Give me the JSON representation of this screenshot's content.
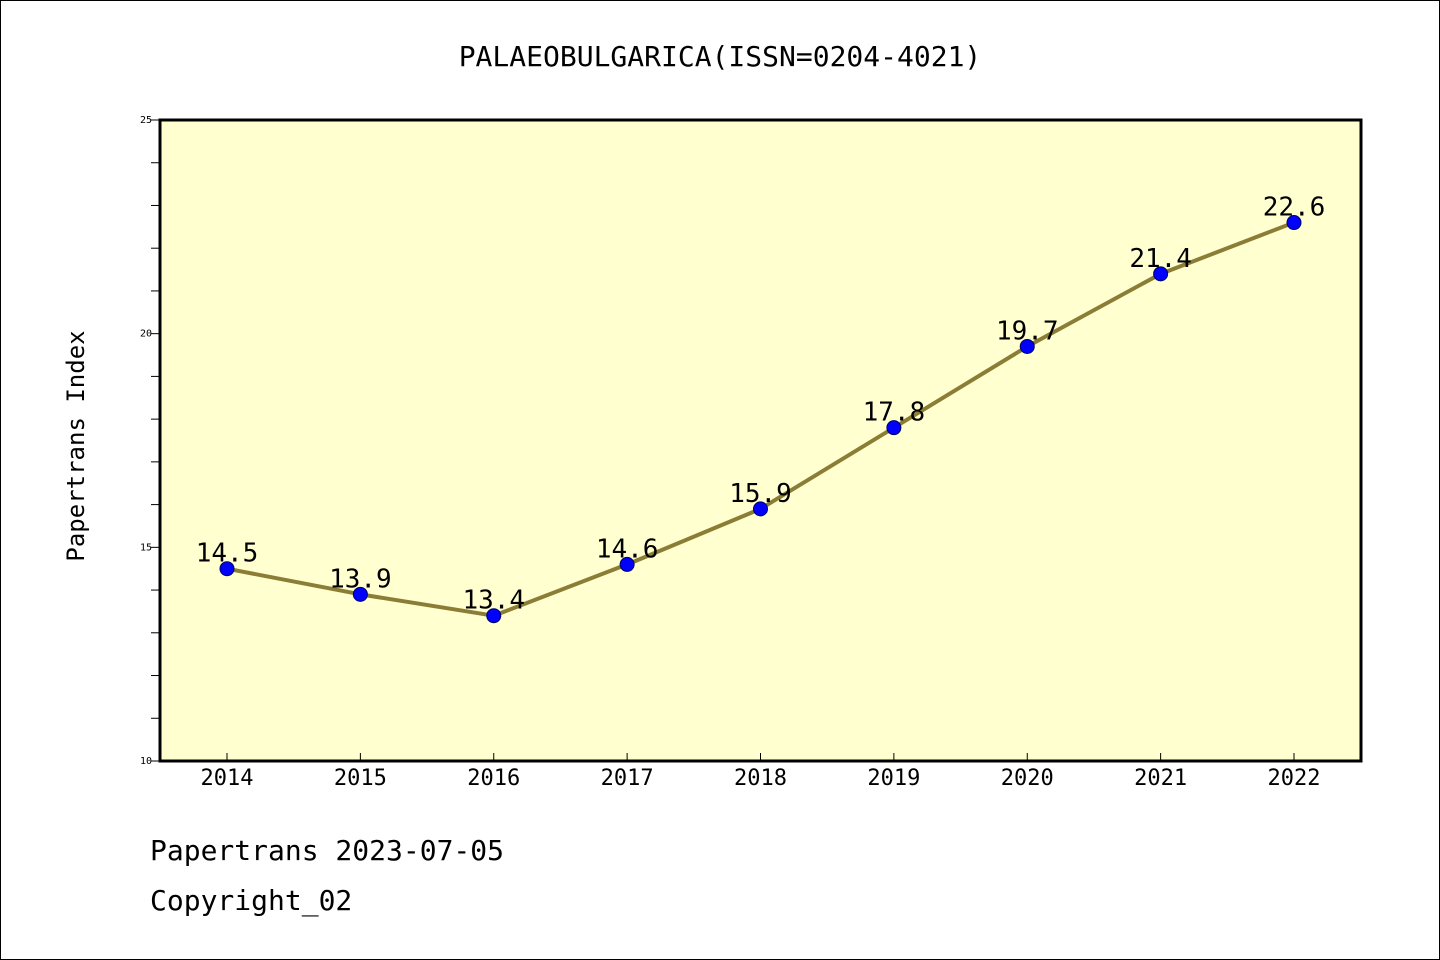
{
  "chart_data": {
    "type": "line",
    "title": "PALAEOBULGARICA(ISSN=0204-4021)",
    "xlabel": "",
    "ylabel": "Papertrans Index",
    "categories": [
      "2014",
      "2015",
      "2016",
      "2017",
      "2018",
      "2019",
      "2020",
      "2021",
      "2022"
    ],
    "values": [
      14.5,
      13.9,
      13.4,
      14.6,
      15.9,
      17.8,
      19.7,
      21.4,
      22.6
    ],
    "data_labels": [
      "14.5",
      "13.9",
      "13.4",
      "14.6",
      "15.9",
      "17.8",
      "19.7",
      "21.4",
      "22.6"
    ],
    "ylim": [
      10,
      25
    ],
    "y_ticks": [
      "10",
      "15",
      "20",
      "25"
    ],
    "y_minor_step": 1,
    "grid": false,
    "legend": "none",
    "colors": {
      "plot_background": "#ffffd0",
      "line": "#8b7d35",
      "marker": "#0000ff",
      "axis": "#000000"
    }
  },
  "footer": {
    "line1": "Papertrans 2023-07-05",
    "line2": "Copyright_02"
  }
}
